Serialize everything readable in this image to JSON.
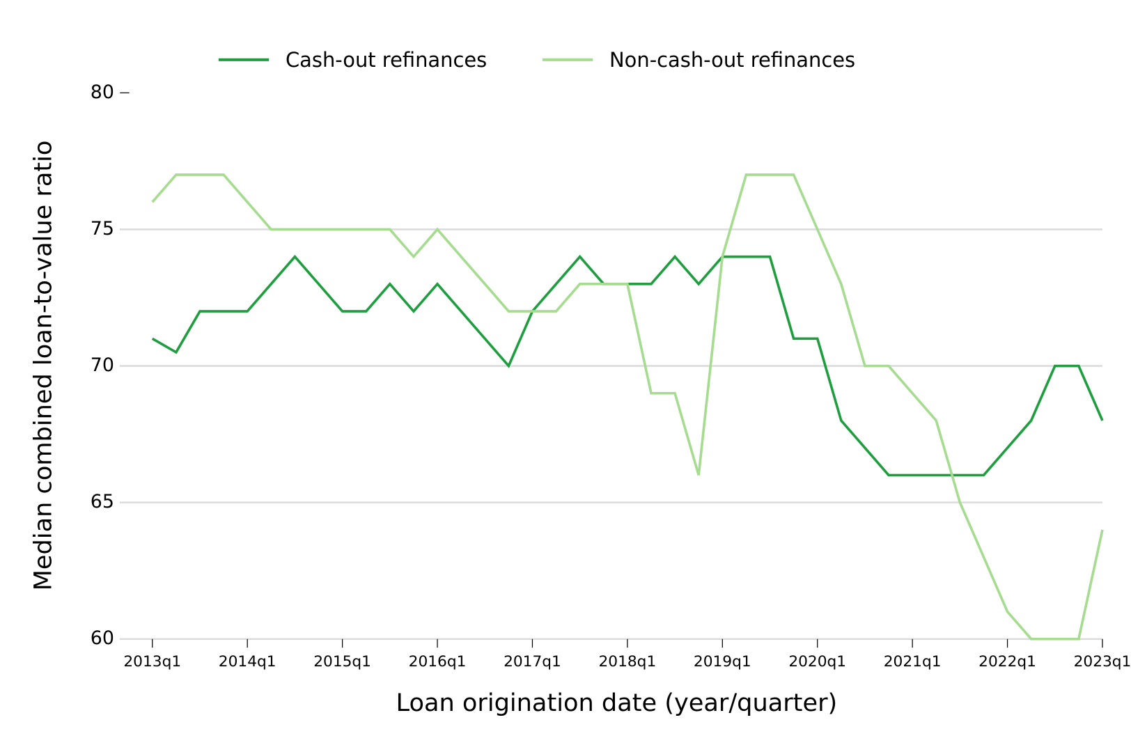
{
  "chart_data": {
    "type": "line",
    "x_label": "Loan origination date (year/quarter)",
    "y_label": "Median combined loan-to-value ratio",
    "categories": [
      "2013q1",
      null,
      null,
      null,
      "2014q1",
      null,
      null,
      null,
      "2015q1",
      null,
      null,
      null,
      "2016q1",
      null,
      null,
      null,
      "2017q1",
      null,
      null,
      null,
      "2018q1",
      null,
      null,
      null,
      "2019q1",
      null,
      null,
      null,
      "2020q1",
      null,
      null,
      null,
      "2021q1",
      null,
      null,
      null,
      "2022q1",
      null,
      null,
      null,
      "2023q1"
    ],
    "series": [
      {
        "name": "Cash-out refinances",
        "color": "#1f9e3f",
        "values": [
          71,
          70.5,
          72,
          72,
          72,
          73,
          74,
          73,
          72,
          72,
          73,
          72,
          73,
          72,
          71,
          70,
          72,
          73,
          74,
          73,
          73,
          73,
          74,
          73,
          74,
          74,
          74,
          71,
          71,
          68,
          67,
          66,
          66,
          66,
          66,
          66,
          67,
          68,
          70,
          70,
          68
        ]
      },
      {
        "name": "Non-cash-out refinances",
        "color": "#a6dc8f",
        "values": [
          76,
          77,
          77,
          77,
          76,
          75,
          75,
          75,
          75,
          75,
          75,
          74,
          75,
          74,
          73,
          72,
          72,
          72,
          73,
          73,
          73,
          69,
          69,
          66,
          74,
          77,
          77,
          77,
          75,
          73,
          70,
          70,
          69,
          68,
          65,
          63,
          61,
          60,
          60,
          60,
          64
        ]
      }
    ],
    "ylim": [
      60,
      80
    ],
    "yticks": [
      60,
      65,
      70,
      75,
      80
    ],
    "grid": true,
    "legend": "top"
  }
}
